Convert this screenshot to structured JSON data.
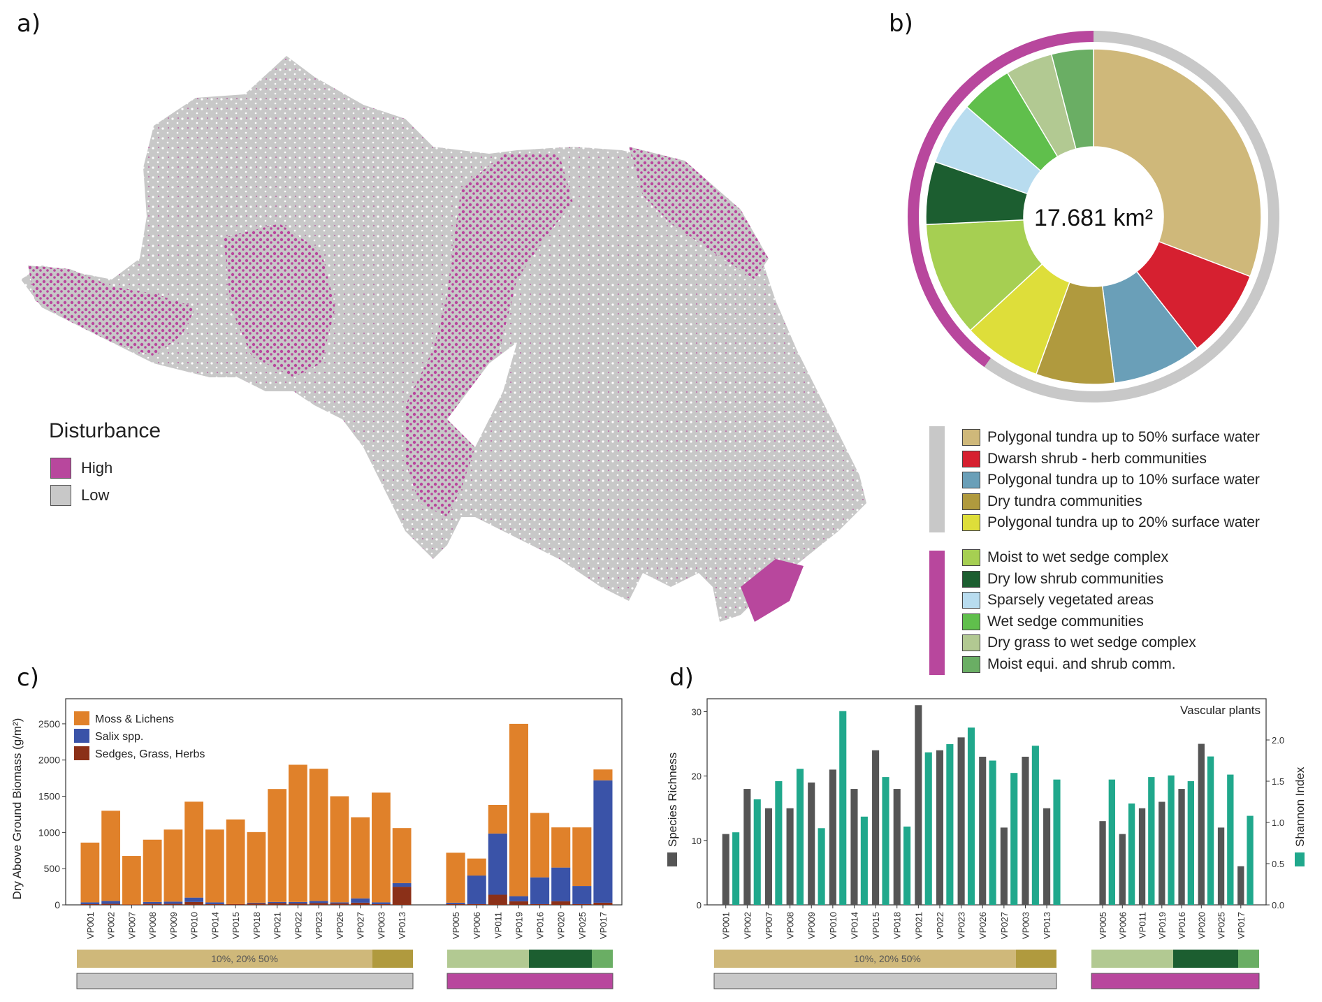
{
  "panels": {
    "a": "a)",
    "b": "b)",
    "c": "c)",
    "d": "d)"
  },
  "colors": {
    "high": "#b8479d",
    "low": "#c8c8c8",
    "moss": "#e0812a",
    "salix": "#3a53a8",
    "sedge": "#8b3018",
    "richness": "#555555",
    "shannon": "#20a88c"
  },
  "map": {
    "legend_title": "Disturbance",
    "legend": [
      {
        "label": "High",
        "color": "#b8479d"
      },
      {
        "label": "Low",
        "color": "#c8c8c8"
      }
    ]
  },
  "donut": {
    "center_label": "17.681 km²",
    "outer_ring": [
      {
        "group": "low",
        "fraction": 0.6,
        "color": "#c8c8c8"
      },
      {
        "group": "high",
        "fraction": 0.4,
        "color": "#b8479d"
      }
    ],
    "slices": [
      {
        "label": "Polygonal tundra up to 50% surface water",
        "value": 0.305,
        "color": "#cfb87a",
        "group": "low"
      },
      {
        "label": "Dwarsh shrub - herb communities",
        "value": 0.085,
        "color": "#d62030",
        "group": "low"
      },
      {
        "label": "Polygonal tundra up to 10% surface water",
        "value": 0.085,
        "color": "#6a9fb8",
        "group": "low"
      },
      {
        "label": "Dry tundra communities",
        "value": 0.075,
        "color": "#b09a3e",
        "group": "low"
      },
      {
        "label": "Polygonal tundra up to 20% surface water",
        "value": 0.075,
        "color": "#dede3a",
        "group": "low"
      },
      {
        "label": "Moist to wet sedge complex",
        "value": 0.11,
        "color": "#a6cf52",
        "group": "high"
      },
      {
        "label": "Dry low shrub communities",
        "value": 0.06,
        "color": "#1c5e30",
        "group": "high"
      },
      {
        "label": "Sparsely vegetated areas",
        "value": 0.06,
        "color": "#b8dcef",
        "group": "high"
      },
      {
        "label": "Wet sedge communities",
        "value": 0.05,
        "color": "#60bf4c",
        "group": "high"
      },
      {
        "label": "Dry grass to wet sedge complex",
        "value": 0.045,
        "color": "#b2c992",
        "group": "high"
      },
      {
        "label": "Moist equi. and shrub comm.",
        "value": 0.04,
        "color": "#6aae64",
        "group": "high"
      }
    ]
  },
  "chart_data": [
    {
      "type": "bar",
      "subtype": "stacked",
      "ylabel": "Dry Above Ground Biomass (g/m²)",
      "ylim": [
        0,
        2750
      ],
      "yticks": [
        0,
        500,
        1000,
        1500,
        2000,
        2500
      ],
      "legend": [
        "Moss & Lichens",
        "Salix spp.",
        "Sedges, Grass, Herbs"
      ],
      "groups": [
        {
          "categories": [
            "VP001",
            "VP002",
            "VP007",
            "VP008",
            "VP009",
            "VP010",
            "VP014",
            "VP015",
            "VP018",
            "VP021",
            "VP022",
            "VP023",
            "VP026",
            "VP027",
            "VP003",
            "VP013"
          ],
          "band_label": "10%, 20% 50%",
          "series": [
            {
              "name": "Sedges, Grass, Herbs",
              "values": [
                10,
                15,
                5,
                15,
                15,
                40,
                10,
                10,
                20,
                25,
                20,
                25,
                20,
                30,
                10,
                250
              ]
            },
            {
              "name": "Salix spp.",
              "values": [
                25,
                40,
                0,
                25,
                30,
                60,
                25,
                0,
                10,
                15,
                20,
                30,
                15,
                60,
                25,
                50
              ]
            },
            {
              "name": "Moss & Lichens",
              "values": [
                825,
                1245,
                670,
                860,
                995,
                1325,
                1005,
                1170,
                975,
                1560,
                1895,
                1825,
                1465,
                1120,
                1515,
                760
              ]
            }
          ]
        },
        {
          "categories": [
            "VP005",
            "VP006",
            "VP011",
            "VP019",
            "VP016",
            "VP020",
            "VP025",
            "VP017"
          ],
          "series": [
            {
              "name": "Sedges, Grass, Herbs",
              "values": [
                10,
                10,
                140,
                50,
                10,
                50,
                10,
                30
              ]
            },
            {
              "name": "Salix spp.",
              "values": [
                20,
                395,
                845,
                70,
                370,
                465,
                250,
                1690
              ]
            },
            {
              "name": "Moss & Lichens",
              "values": [
                690,
                235,
                395,
                2380,
                890,
                555,
                810,
                150
              ]
            }
          ]
        }
      ]
    },
    {
      "type": "bar",
      "subtype": "grouped-dual-axis",
      "title": "Vascular plants",
      "ylabel": "Species Richness",
      "y2label": "Shannon Index",
      "ylim": [
        0,
        32
      ],
      "yticks": [
        0,
        10,
        20,
        30
      ],
      "y2lim": [
        0,
        2.5
      ],
      "y2ticks": [
        "0.0",
        "0.5",
        "1.0",
        "1.5",
        "2.0"
      ],
      "groups": [
        {
          "categories": [
            "VP001",
            "VP002",
            "VP007",
            "VP008",
            "VP009",
            "VP010",
            "VP014",
            "VP015",
            "VP018",
            "VP021",
            "VP022",
            "VP023",
            "VP026",
            "VP027",
            "VP003",
            "VP013"
          ],
          "band_label": "10%, 20% 50%",
          "series": [
            {
              "name": "Species Richness",
              "values": [
                11,
                18,
                15,
                15,
                19,
                21,
                18,
                24,
                18,
                31,
                24,
                26,
                23,
                12,
                23,
                15
              ]
            },
            {
              "name": "Shannon Index",
              "values": [
                0.88,
                1.28,
                1.5,
                1.65,
                0.93,
                2.35,
                1.07,
                1.55,
                0.95,
                1.85,
                1.95,
                2.15,
                1.75,
                1.6,
                1.93,
                1.52
              ]
            }
          ]
        },
        {
          "categories": [
            "VP005",
            "VP006",
            "VP011",
            "VP019",
            "VP016",
            "VP020",
            "VP025",
            "VP017"
          ],
          "series": [
            {
              "name": "Species Richness",
              "values": [
                13,
                11,
                15,
                16,
                18,
                25,
                12,
                6
              ]
            },
            {
              "name": "Shannon Index",
              "values": [
                1.52,
                1.23,
                1.55,
                1.57,
                1.5,
                1.8,
                1.58,
                1.08
              ]
            }
          ]
        }
      ]
    }
  ],
  "bands": {
    "left_colors": [
      "#cfb87a",
      "#b09a3e"
    ],
    "right_colors": [
      "#b2c992",
      "#1c5e30",
      "#6aae64"
    ]
  }
}
